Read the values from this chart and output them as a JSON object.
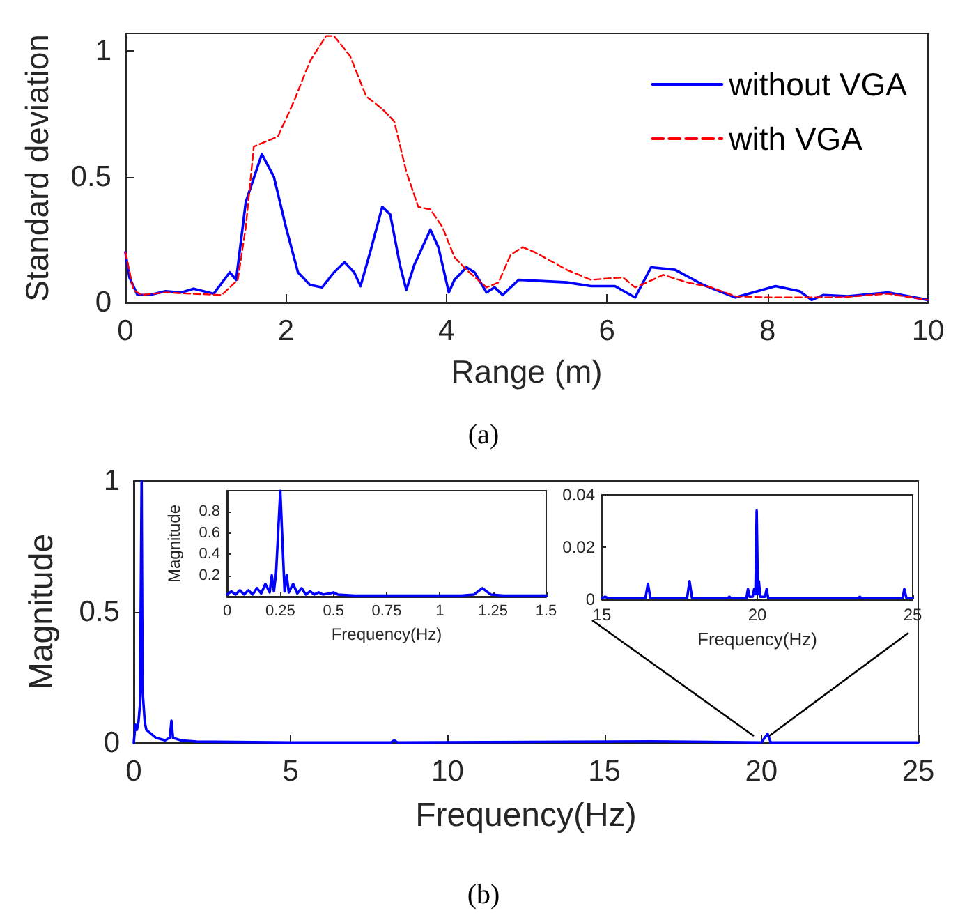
{
  "chart_data": [
    {
      "type": "line",
      "xlabel": "Range (m)",
      "ylabel": "Standard deviation",
      "xlim": [
        0,
        10
      ],
      "ylim": [
        0,
        1.07
      ],
      "xticks": [
        0,
        2,
        4,
        6,
        8,
        10
      ],
      "yticks": [
        0,
        0.5,
        1
      ],
      "grid": false,
      "legend": "top right",
      "marker": "none",
      "annotations": [
        "(a)"
      ],
      "series": [
        {
          "name": "without VGA",
          "color": "#0000ff",
          "line_style": "solid",
          "x": [
            0,
            0.05,
            0.15,
            0.3,
            0.5,
            0.7,
            0.85,
            1.1,
            1.3,
            1.38,
            1.5,
            1.7,
            1.85,
            2.0,
            2.15,
            2.3,
            2.45,
            2.6,
            2.73,
            2.85,
            2.93,
            3.05,
            3.2,
            3.3,
            3.42,
            3.5,
            3.6,
            3.8,
            3.9,
            4.03,
            4.1,
            4.25,
            4.35,
            4.5,
            4.6,
            4.7,
            4.9,
            5.2,
            5.5,
            5.8,
            6.1,
            6.35,
            6.55,
            6.85,
            7.2,
            7.6,
            8.1,
            8.4,
            8.55,
            8.7,
            9.0,
            9.5,
            10
          ],
          "values": [
            0.2,
            0.1,
            0.03,
            0.03,
            0.045,
            0.04,
            0.055,
            0.035,
            0.12,
            0.09,
            0.4,
            0.59,
            0.5,
            0.3,
            0.12,
            0.07,
            0.06,
            0.12,
            0.16,
            0.12,
            0.065,
            0.2,
            0.38,
            0.35,
            0.15,
            0.05,
            0.15,
            0.29,
            0.22,
            0.04,
            0.09,
            0.14,
            0.12,
            0.04,
            0.06,
            0.03,
            0.09,
            0.085,
            0.08,
            0.065,
            0.065,
            0.02,
            0.14,
            0.13,
            0.07,
            0.02,
            0.065,
            0.045,
            0.01,
            0.03,
            0.025,
            0.04,
            0.01
          ]
        },
        {
          "name": "with VGA",
          "color": "#ff0000",
          "line_style": "dashed",
          "x": [
            0,
            0.1,
            0.2,
            0.5,
            0.8,
            1.2,
            1.4,
            1.5,
            1.6,
            1.75,
            1.9,
            2.1,
            2.3,
            2.5,
            2.6,
            2.8,
            3.0,
            3.2,
            3.35,
            3.5,
            3.65,
            3.8,
            3.95,
            4.1,
            4.25,
            4.5,
            4.65,
            4.8,
            4.95,
            5.1,
            5.5,
            5.8,
            6.2,
            6.35,
            6.5,
            6.7,
            7.0,
            7.3,
            7.6,
            8.0,
            8.5,
            8.9,
            9.5,
            10
          ],
          "values": [
            0.2,
            0.05,
            0.03,
            0.04,
            0.035,
            0.03,
            0.09,
            0.3,
            0.62,
            0.64,
            0.66,
            0.8,
            0.96,
            1.06,
            1.06,
            0.98,
            0.82,
            0.77,
            0.72,
            0.52,
            0.38,
            0.37,
            0.3,
            0.18,
            0.13,
            0.06,
            0.08,
            0.19,
            0.22,
            0.2,
            0.13,
            0.09,
            0.1,
            0.06,
            0.08,
            0.11,
            0.08,
            0.06,
            0.025,
            0.02,
            0.02,
            0.02,
            0.035,
            0.01
          ]
        }
      ]
    },
    {
      "type": "line",
      "xlabel": "Frequency(Hz)",
      "ylabel": "Magnitude",
      "xlim": [
        0,
        25
      ],
      "ylim": [
        0,
        1
      ],
      "xticks": [
        0,
        5,
        10,
        15,
        20,
        25
      ],
      "yticks": [
        0,
        0.5,
        1
      ],
      "grid": false,
      "marker": "none",
      "annotations": [
        "(b)"
      ],
      "series": [
        {
          "color": "#0000ff",
          "line_style": "solid",
          "x": [
            0,
            0.05,
            0.1,
            0.15,
            0.2,
            0.25,
            0.28,
            0.3,
            0.35,
            0.4,
            0.5,
            0.6,
            0.7,
            1.0,
            1.15,
            1.2,
            1.25,
            1.5,
            2,
            5,
            8.2,
            8.3,
            8.4,
            16.5,
            20,
            20.2,
            20.3,
            25
          ],
          "values": [
            0,
            0.07,
            0.05,
            0.08,
            0.15,
            1.0,
            0.2,
            0.2,
            0.08,
            0.05,
            0.04,
            0.03,
            0.02,
            0.01,
            0.02,
            0.085,
            0.02,
            0.01,
            0.005,
            0.002,
            0.002,
            0.01,
            0.002,
            0.006,
            0.002,
            0.035,
            0.002,
            0.002
          ]
        }
      ]
    },
    {
      "type": "line",
      "xlabel": "Frequency(Hz)",
      "ylabel": "Magnitude",
      "xlim": [
        0,
        1.5
      ],
      "ylim": [
        0,
        1
      ],
      "xticks": [
        0,
        0.25,
        0.5,
        0.75,
        1,
        1.25,
        1.5
      ],
      "yticks": [
        0.2,
        0.4,
        0.6,
        0.8
      ],
      "grid": false,
      "marker": "none",
      "series": [
        {
          "color": "#0000ff",
          "line_style": "solid",
          "x": [
            0,
            0.02,
            0.04,
            0.06,
            0.08,
            0.1,
            0.12,
            0.14,
            0.16,
            0.18,
            0.2,
            0.21,
            0.22,
            0.23,
            0.25,
            0.27,
            0.28,
            0.29,
            0.31,
            0.33,
            0.35,
            0.37,
            0.39,
            0.41,
            0.43,
            0.45,
            0.48,
            0.5,
            0.52,
            0.6,
            0.8,
            1.1,
            1.16,
            1.2,
            1.24,
            1.3,
            1.5
          ],
          "values": [
            0.02,
            0.05,
            0.02,
            0.06,
            0.02,
            0.06,
            0.02,
            0.08,
            0.03,
            0.12,
            0.04,
            0.2,
            0.05,
            0.22,
            1.0,
            0.05,
            0.2,
            0.04,
            0.12,
            0.03,
            0.08,
            0.02,
            0.05,
            0.02,
            0.04,
            0.02,
            0.03,
            0.04,
            0.02,
            0.01,
            0.01,
            0.01,
            0.02,
            0.08,
            0.02,
            0.01,
            0.01
          ]
        }
      ]
    },
    {
      "type": "line",
      "xlabel": "Frequency(Hz)",
      "xlim": [
        15,
        25
      ],
      "ylim": [
        0,
        0.04
      ],
      "xticks": [
        15,
        20,
        25
      ],
      "yticks": [
        0,
        0.02,
        0.04
      ],
      "grid": false,
      "marker": "none",
      "series": [
        {
          "color": "#0000ff",
          "line_style": "solid",
          "x": [
            15,
            15.1,
            15.2,
            16.4,
            16.48,
            16.56,
            17.74,
            17.82,
            17.9,
            19.05,
            19.1,
            19.15,
            19.65,
            19.7,
            19.75,
            19.85,
            19.9,
            19.94,
            19.98,
            20.02,
            20.05,
            20.1,
            20.25,
            20.3,
            20.35,
            23.25,
            23.3,
            23.35,
            24.68,
            24.73,
            24.8,
            25
          ],
          "values": [
            0.0005,
            0.001,
            0.0005,
            0.0005,
            0.006,
            0.0005,
            0.0005,
            0.007,
            0.0005,
            0.0005,
            0.001,
            0.0005,
            0.0005,
            0.004,
            0.001,
            0.001,
            0.004,
            0.002,
            0.034,
            0.002,
            0.007,
            0.001,
            0.001,
            0.004,
            0.0005,
            0.0005,
            0.001,
            0.0005,
            0.0005,
            0.004,
            0.0005,
            0.0005
          ]
        }
      ]
    }
  ]
}
